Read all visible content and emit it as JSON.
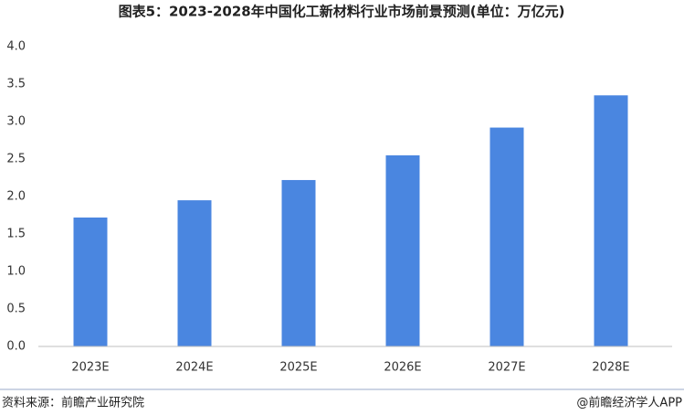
{
  "chart_data": {
    "type": "bar",
    "title": "图表5：2023-2028年中国化工新材料行业市场前景预测(单位：万亿元)",
    "categories": [
      "2023E",
      "2024E",
      "2025E",
      "2026E",
      "2027E",
      "2028E"
    ],
    "values": [
      1.72,
      1.95,
      2.22,
      2.55,
      2.92,
      3.35
    ],
    "color": "#4a86e0",
    "ylim": [
      0,
      4
    ],
    "yticks": [
      {
        "value": 0,
        "label": "0.0"
      },
      {
        "value": 0.5,
        "label": "0.5"
      },
      {
        "value": 1,
        "label": "1.0"
      },
      {
        "value": 1.5,
        "label": "1.5"
      },
      {
        "value": 2,
        "label": "2.0"
      },
      {
        "value": 2.5,
        "label": "2.5"
      },
      {
        "value": 3,
        "label": "3.0"
      },
      {
        "value": 3.5,
        "label": "3.5"
      },
      {
        "value": 4,
        "label": "4.0"
      }
    ],
    "grid": false,
    "source": "资料来源：前瞻产业研究院",
    "credit": "@前瞻经济学人APP"
  }
}
